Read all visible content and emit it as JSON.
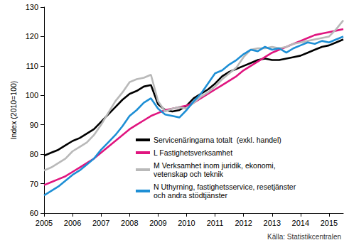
{
  "chart_data": {
    "type": "line",
    "y_label": "Index (2010=100)",
    "annotation": "Källa: Statistikcentralen",
    "x": [
      2005,
      2005.25,
      2005.5,
      2005.75,
      2006,
      2006.25,
      2006.5,
      2006.75,
      2007,
      2007.25,
      2007.5,
      2007.75,
      2008,
      2008.25,
      2008.5,
      2008.75,
      2009,
      2009.25,
      2009.5,
      2009.75,
      2010,
      2010.25,
      2010.5,
      2010.75,
      2011,
      2011.25,
      2011.5,
      2011.75,
      2012,
      2012.25,
      2012.5,
      2012.75,
      2013,
      2013.25,
      2013.5,
      2013.75,
      2014,
      2014.25,
      2014.5,
      2014.75,
      2015,
      2015.25,
      2015.5
    ],
    "series": [
      {
        "name": "Servicenäringarna totalt  (exkl. handel)",
        "color": "#000000",
        "values": [
          79.5,
          80.5,
          81.5,
          83,
          84.5,
          85.5,
          87,
          88.5,
          91,
          93.5,
          96,
          98.5,
          100.5,
          101.5,
          103,
          103.5,
          97,
          95,
          94.5,
          95,
          96.5,
          99,
          100.5,
          102,
          104,
          106.5,
          108,
          109,
          110,
          111,
          112,
          112.5,
          112,
          112,
          112.5,
          113,
          113.5,
          114.5,
          115.5,
          116.5,
          117,
          118,
          119
        ]
      },
      {
        "name": "L Fastighetsverksamhet",
        "color": "#e0157f",
        "values": [
          69.5,
          70.5,
          71.5,
          72.5,
          74,
          75.5,
          77,
          78.5,
          80.5,
          82.5,
          84.5,
          86.5,
          88.5,
          90,
          91.5,
          93,
          94,
          95,
          95.5,
          96,
          96.5,
          97.5,
          99,
          100.5,
          102,
          103.5,
          105,
          106.5,
          108.5,
          110,
          111.5,
          113,
          114.5,
          115.5,
          116.5,
          117.5,
          118.5,
          119.5,
          120.5,
          121,
          121.5,
          122,
          122.5
        ]
      },
      {
        "name": "M Verksamhet inom juridik, ekonomi,\nvetenskap och teknik",
        "color": "#b9b9b9",
        "values": [
          74.5,
          75.5,
          77,
          78.5,
          81,
          82.5,
          84,
          86.5,
          90,
          94,
          98,
          101,
          104.5,
          105.5,
          106,
          107,
          98,
          94.5,
          95.5,
          96,
          95.5,
          97.5,
          99.5,
          101,
          103,
          105.5,
          107.5,
          109.5,
          113,
          115.5,
          116,
          116,
          116.5,
          116,
          116.5,
          117.5,
          118,
          118.5,
          119,
          119.5,
          120,
          122.5,
          125.5
        ]
      },
      {
        "name": "N Uthyrning, fastighetsservice, resetjänster\noch andra stödtjänster",
        "color": "#1e8fd5",
        "values": [
          66,
          67.5,
          69,
          71,
          73,
          74.5,
          76.5,
          78.5,
          81.5,
          84,
          86.5,
          89.5,
          93,
          95,
          97.5,
          99,
          95.5,
          93.5,
          93,
          92.5,
          95,
          98,
          100.5,
          104,
          107.5,
          108.5,
          110.5,
          112,
          114,
          115.5,
          115,
          116.5,
          115.5,
          116,
          114.5,
          116,
          117,
          118,
          117.5,
          118.5,
          118,
          119,
          120
        ]
      }
    ],
    "xlim": [
      2005,
      2015.5
    ],
    "xticks": [
      2005,
      2006,
      2007,
      2008,
      2009,
      2010,
      2011,
      2012,
      2013,
      2014,
      2015
    ],
    "ylim": [
      60,
      130
    ],
    "yticks": [
      60,
      70,
      80,
      90,
      100,
      110,
      120,
      130
    ],
    "grid": false,
    "legend": "inside"
  }
}
